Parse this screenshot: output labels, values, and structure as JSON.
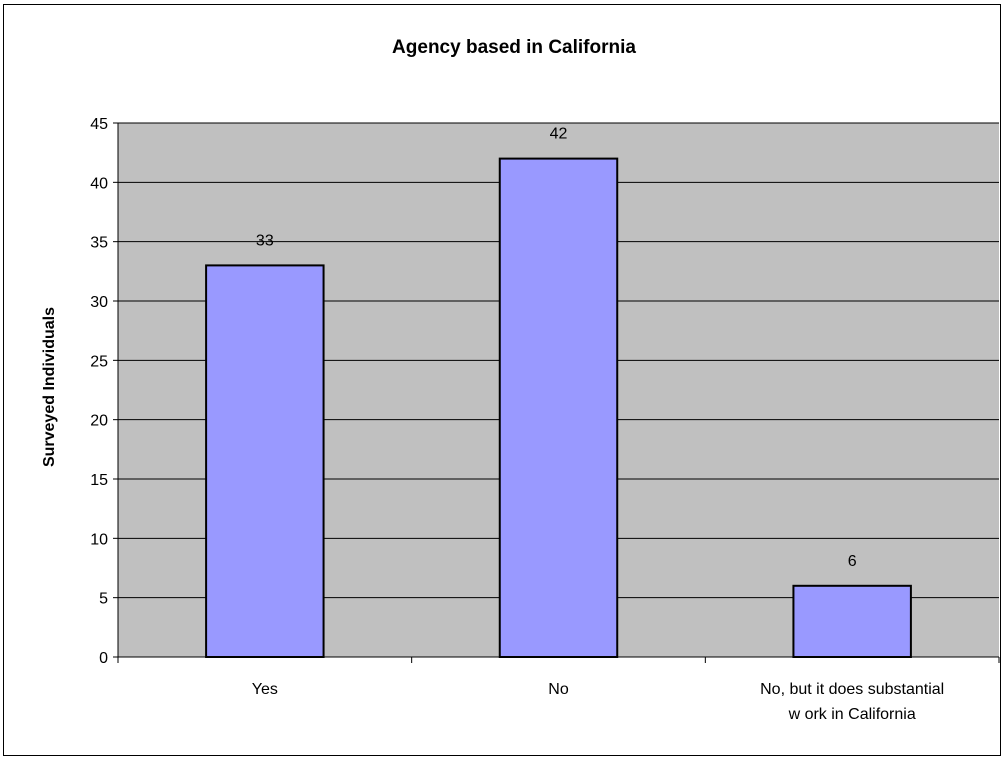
{
  "chart_data": {
    "type": "bar",
    "title": "Agency based in California",
    "xlabel": "",
    "ylabel": "Surveyed Individuals",
    "ylim": [
      0,
      45
    ],
    "yticks": [
      0,
      5,
      10,
      15,
      20,
      25,
      30,
      35,
      40,
      45
    ],
    "categories": [
      "Yes",
      "No",
      "No, but it does substantial w ork in California"
    ],
    "category_lines": [
      [
        "Yes"
      ],
      [
        "No"
      ],
      [
        "No, but it does substantial",
        "w ork in California"
      ]
    ],
    "values": [
      33,
      42,
      6
    ],
    "data_labels": [
      "33",
      "42",
      "6"
    ],
    "grid": true,
    "legend": "none",
    "colors": {
      "plot_background": "#c0c0c0",
      "bar_fill": "#9999ff",
      "bar_stroke": "#000000",
      "gridline": "#000000"
    }
  }
}
